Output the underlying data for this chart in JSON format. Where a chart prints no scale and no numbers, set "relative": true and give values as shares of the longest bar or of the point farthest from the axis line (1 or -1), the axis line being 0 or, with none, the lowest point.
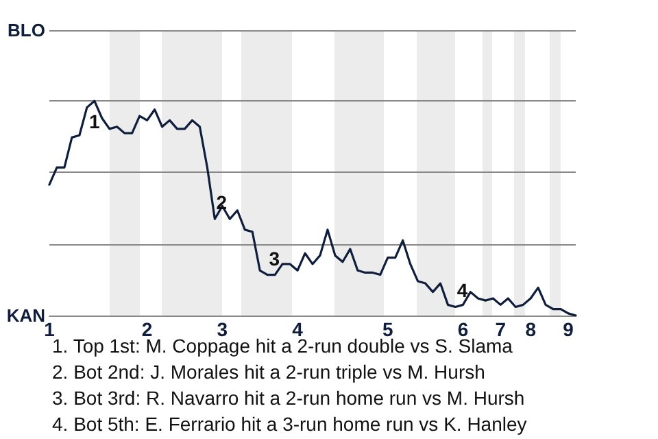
{
  "chart_data": {
    "type": "line",
    "relative": true,
    "categories": [
      "1",
      null,
      null,
      null,
      null,
      null,
      null,
      null,
      null,
      null,
      null,
      null,
      null,
      "2",
      null,
      null,
      null,
      null,
      null,
      null,
      null,
      null,
      null,
      "3",
      null,
      null,
      null,
      null,
      null,
      null,
      null,
      null,
      null,
      "4",
      null,
      null,
      null,
      null,
      null,
      null,
      null,
      null,
      null,
      null,
      null,
      "5",
      null,
      null,
      null,
      null,
      null,
      null,
      null,
      null,
      null,
      "6",
      null,
      null,
      null,
      null,
      "7",
      null,
      null,
      null,
      "8",
      null,
      null,
      null,
      null,
      "9",
      null
    ],
    "series": [
      {
        "color": "#0f1e3c",
        "values": [
          0.61,
          0.69,
          0.69,
          0.83,
          0.84,
          0.97,
          1,
          0.92,
          0.87,
          0.88,
          0.85,
          0.85,
          0.93,
          0.91,
          0.96,
          0.88,
          0.91,
          0.87,
          0.87,
          0.91,
          0.88,
          0.69,
          0.45,
          0.51,
          0.45,
          0.49,
          0.4,
          0.39,
          0.21,
          0.19,
          0.19,
          0.24,
          0.24,
          0.21,
          0.29,
          0.24,
          0.28,
          0.4,
          0.28,
          0.25,
          0.31,
          0.21,
          0.2,
          0.2,
          0.19,
          0.27,
          0.27,
          0.35,
          0.24,
          0.16,
          0.15,
          0.11,
          0.15,
          0.05,
          0.04,
          0.05,
          0.11,
          0.08,
          0.07,
          0.08,
          0.05,
          0.08,
          0.04,
          0.05,
          0.08,
          0.13,
          0.05,
          0.03,
          0.03,
          0.01,
          0
        ]
      }
    ],
    "ref_lines": [
      {
        "axis": "y",
        "value": 0,
        "label": "KAN",
        "color": "#888888"
      },
      {
        "axis": "y",
        "value": 0.33,
        "color": "#888888"
      },
      {
        "axis": "y",
        "value": 0.67,
        "color": "#888888"
      },
      {
        "axis": "y",
        "value": 1,
        "color": "#888888"
      },
      {
        "axis": "y",
        "value": 1.33,
        "label": "BLO",
        "color": "#888888"
      }
    ],
    "annotations": [
      {
        "text": "1",
        "y": 1
      },
      {
        "text": "2",
        "y": 0.45
      },
      {
        "text": "3",
        "y": 0.19
      },
      {
        "text": "4",
        "y": 0.04
      },
      "1. Top 1st: M. Coppage hit a 2-run double vs S. Slama",
      "2. Bot 2nd: J. Morales hit a 2-run triple vs M. Hursh",
      "3. Bot 3rd: R. Navarro hit a 2-run home run vs M. Hursh",
      "4. Bot 5th: E. Ferrario hit a 3-run home run vs K. Hanley"
    ]
  }
}
